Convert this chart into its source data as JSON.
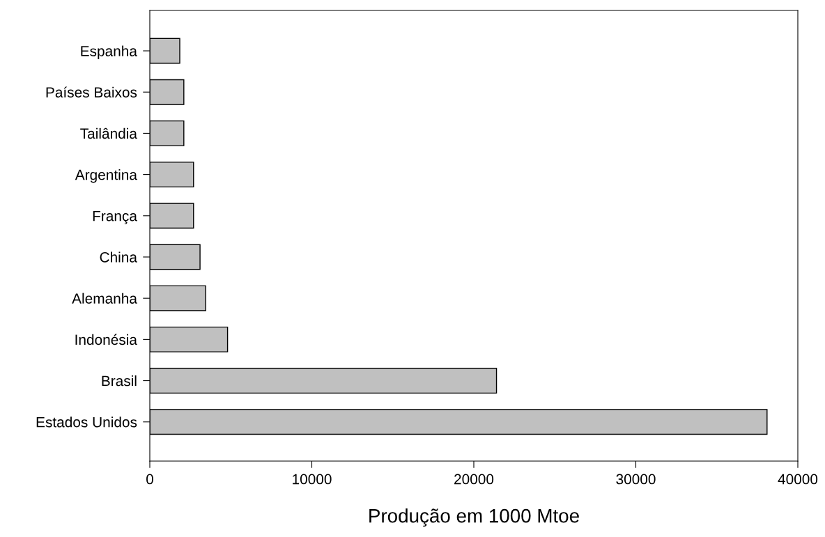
{
  "chart_data": {
    "type": "bar",
    "orientation": "horizontal",
    "xlabel": "Produção em 1000 Mtoe",
    "categories": [
      "Espanha",
      "Países Baixos",
      "Tailândia",
      "Argentina",
      "França",
      "China",
      "Alemanha",
      "Indonésia",
      "Brasil",
      "Estados Unidos"
    ],
    "values": [
      1850,
      2100,
      2100,
      2700,
      2700,
      3100,
      3450,
      4800,
      21400,
      38100
    ],
    "color": "#c0c0c0",
    "xlim": [
      0,
      40000
    ],
    "xticks": [
      0,
      10000,
      20000,
      30000,
      40000
    ],
    "grid": false,
    "legend": false
  }
}
